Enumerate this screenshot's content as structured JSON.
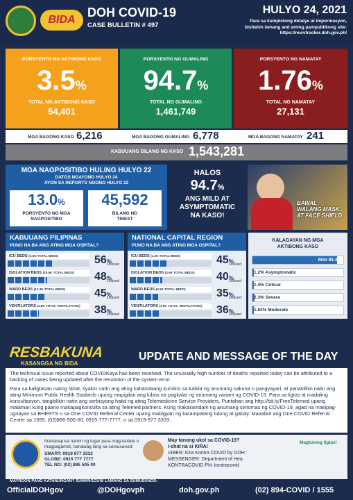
{
  "header": {
    "logo_text": "BIDA",
    "title": "DOH COVID-19",
    "subtitle": "CASE BULLETIN # 497",
    "date": "HULYO 24, 2021",
    "note": [
      "Para sa kumpletong detalye at impormasyon,",
      "bisitahin lamang and aming pampublikong site:",
      "https://ncovtracker.doh.gov.ph/"
    ]
  },
  "summary_cards": [
    {
      "label": "PORSYENTO NG AKTIBONG KASO",
      "value": "3.5",
      "unit": "%",
      "sub_label": "TOTAL NG AKTIBONG KASO",
      "sub_value": "54,401",
      "color": "#f5a11c"
    },
    {
      "label": "PORSYENTO NG GUMALING",
      "value": "94.7",
      "unit": "%",
      "sub_label": "TOTAL NG GUMALING",
      "sub_value": "1,461,749",
      "color": "#1d8a57"
    },
    {
      "label": "PORSYENTO NG NAMATAY",
      "value": "1.76",
      "unit": "%",
      "sub_label": "TOTAL NG NAMATAY",
      "sub_value": "27,131",
      "color": "#8a1e1e"
    }
  ],
  "new_cases": [
    {
      "label": "MGA BAGONG KASO",
      "value": "6,216"
    },
    {
      "label": "MGA BAGONG GUMALING",
      "value": "6,778"
    },
    {
      "label": "MGA BAGONG NAMATAY",
      "value": "241"
    }
  ],
  "total": {
    "label": "KABUUANG BILANG NG KASO",
    "value": "1,543,281"
  },
  "positivity": {
    "title": "MGA NAGPOSITIBO HULING HULYO 22",
    "subtitle": [
      "DATOS NGAYONG HULYO 24",
      "AYON SA REPORTS NOONG HULYO 22"
    ],
    "boxes": [
      {
        "value": "13.0",
        "unit": "%",
        "label": [
          "PORSYENTO NG MGA",
          "NAGPOSITIBO"
        ]
      },
      {
        "value": "45,592",
        "unit": "",
        "label": [
          "BILANG NG",
          "TINEST"
        ]
      }
    ]
  },
  "mild": {
    "intro": "HALOS",
    "value": "94.7",
    "unit": "%",
    "text": [
      "ANG MILD AT",
      "ASYMPTOMATIC",
      "NA KASO!"
    ]
  },
  "poster": {
    "lines": [
      "BAWAL",
      "WALANG MASK",
      "AT FACE SHIELD"
    ]
  },
  "utilized_label": "Utilized",
  "utilization": [
    {
      "title": "KABUUANG PILIPINAS",
      "subtitle": "PUNO NA BA ANG ATING MGA OSPITAL?",
      "rows": [
        {
          "label": "ICU BEDS",
          "capacity": "(3.5K TOTAL BEDS)",
          "value": 56,
          "unit": "%"
        },
        {
          "label": "ISOLATION BEDS",
          "capacity": "(19.5K TOTAL BEDS)",
          "value": 48,
          "unit": "%"
        },
        {
          "label": "WARD BEDS",
          "capacity": "(12.3K TOTAL BEDS)",
          "value": 45,
          "unit": "%"
        },
        {
          "label": "VENTILATORS",
          "capacity": "(2.8K TOTAL VENTILATORS)",
          "value": 38,
          "unit": "%"
        }
      ]
    },
    {
      "title": "NATIONAL CAPITAL REGION",
      "subtitle": "PUNO NA BA ANG ATING MGA OSPITAL?",
      "rows": [
        {
          "label": "ICU BEDS",
          "capacity": "(1.2K TOTAL BEDS)",
          "value": 45,
          "unit": "%"
        },
        {
          "label": "ISOLATION BEDS",
          "capacity": "(4.6K TOTAL BEDS)",
          "value": 40,
          "unit": "%"
        },
        {
          "label": "WARD BEDS",
          "capacity": "(3.5K TOTAL BEDS)",
          "value": 35,
          "unit": "%"
        },
        {
          "label": "VENTILATORS",
          "capacity": "(1.0K TOTAL VENTILATORS)",
          "value": 36,
          "unit": "%"
        }
      ]
    }
  ],
  "conditions": {
    "title": [
      "KALAGAYAN NG MGA",
      "AKTIBONG KASO"
    ],
    "items": [
      {
        "label": "Mild 93.4%",
        "value": 93.4
      },
      {
        "label": "1.2% Asymptomatic",
        "value": 1.2
      },
      {
        "label": "1.4% Critical",
        "value": 1.4
      },
      {
        "label": "2.3% Severe",
        "value": 2.3
      },
      {
        "label": "1.62% Moderate",
        "value": 1.62
      }
    ]
  },
  "message": {
    "logo": [
      "RESBAKUNA",
      "KASANGGA NG BIDA"
    ],
    "title": "UPDATE AND MESSAGE OF THE DAY",
    "paragraphs": [
      "The technical issue reported about COVIDKaya has been resolved. The unusually high number of deaths reported today can be attributed to a backlog of cases being updated after the resolution of the system error.",
      "Para sa kaligtasan nating lahat, tiyakin natin ang ating kahandaang kumilos sa kabila ng anumang sakuna o pangyayari, at panatilihin natin ang ating Minimum Public Health Stadards upang mapigilan ang lubos na pagkalat ng anumang variant ng COVID-19. Para sa ligtas at madaling konsultasyon, tangkilikin natin ang serbisyong hatid ng ating Telemedicine Service Providers. Puntahan ang http://bit.ly/FreeTelemed upang malaman kung paano makapagkonsulta sa ating Telemed partners. Kung makaramdam ng anumang sintomas ng COVID-19, agad na makipag-ugnayan sa BHERTS o sa One COVID Referral Center upang mabigyan ng karampatang tulong at gabay. Maaabot ang One COVID Referral Center sa 1555, (02)886-505-00, 0915-777-7777, o sa 0919-977-3333."
    ]
  },
  "contacts": {
    "left": [
      "Ihahanap ka namin ng lugar para mag-isolate o magpagamot, tumawag lang sa sumusunod:",
      "SMART: 0919 977 3333",
      "GLOBE: 0915 777 7777",
      "TEL NO: (02) 886 505 00"
    ],
    "right": [
      "May tanong ukol sa COVID-19?",
      "I-chat na si KIRA!",
      "VIBER: Kira Kontra COVID by DOH",
      "MESSENGER: Department of Hea",
      "KONTRACOVID PH: kontracovid"
    ],
    "tagline": "Magtulong ligtas!"
  },
  "footer": {
    "label": "MAYROON PANG KATANUNGAN? SUMANGGUNI LAMANG SA SUMUSUNOD:",
    "items": [
      "OfficialDOHgov",
      "@DOHgovph",
      "doh.gov.ph",
      "(02) 894-COVID / 1555"
    ]
  }
}
